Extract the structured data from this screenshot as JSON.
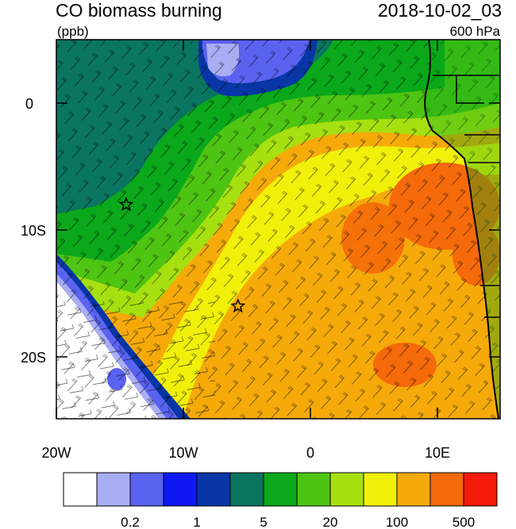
{
  "header": {
    "title": "CO biomass burning",
    "units": "(ppb)",
    "datetime": "2018-10-02_03",
    "level": "600 hPa"
  },
  "axes": {
    "lat_ticks": [
      "0",
      "10S",
      "20S"
    ],
    "lon_ticks": [
      "20W",
      "10W",
      "0",
      "10E"
    ]
  },
  "colorbar": {
    "colors": [
      "#ffffff",
      "#a9adf2",
      "#5a62f0",
      "#0d18f2",
      "#0836a6",
      "#0a7560",
      "#0aa81a",
      "#4ec413",
      "#a6e010",
      "#f0f00a",
      "#f5aa0a",
      "#f56a0a",
      "#f5190a"
    ],
    "labels": [
      "0.2",
      "1",
      "5",
      "20",
      "100",
      "500"
    ]
  },
  "markers": [
    {
      "name": "station-star-1",
      "lon": -14.5,
      "lat": -8
    },
    {
      "name": "station-star-2",
      "lon": -5.7,
      "lat": -16
    }
  ]
}
